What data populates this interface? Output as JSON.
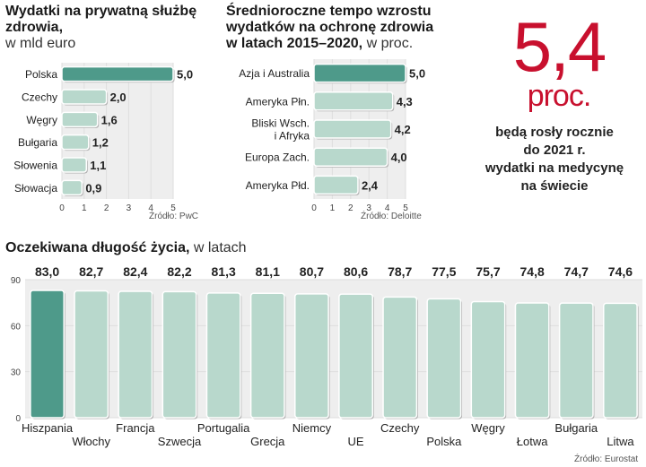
{
  "chart_data": [
    {
      "type": "bar",
      "orientation": "horizontal",
      "title": "Wydatki na prywatną służbę zdrowia,",
      "unit": "w mld euro",
      "categories": [
        "Polska",
        "Czechy",
        "Węgry",
        "Bułgaria",
        "Słowenia",
        "Słowacja"
      ],
      "values": [
        5.0,
        2.0,
        1.6,
        1.2,
        1.1,
        0.9
      ],
      "value_labels": [
        "5,0",
        "2,0",
        "1,6",
        "1,2",
        "1,1",
        "0,9"
      ],
      "xlim": [
        0,
        5
      ],
      "ticks": [
        0,
        1,
        2,
        3,
        4,
        5
      ],
      "source": "Źródło: PwC"
    },
    {
      "type": "bar",
      "orientation": "horizontal",
      "title": "Średnioroczne tempo wzrostu wydatków na ochronę zdrowia w latach 2015–2020,",
      "title_lines": [
        "Średnioroczne tempo wzrostu",
        "wydatków na ochronę zdrowia",
        "w latach 2015–2020,"
      ],
      "unit": "w proc.",
      "categories": [
        "Azja i Australia",
        "Ameryka Płn.",
        "Bliski Wsch. i Afryka",
        "Europa Zach.",
        "Ameryka Płd."
      ],
      "category_lines": [
        [
          "Azja i Australia"
        ],
        [
          "Ameryka Płn."
        ],
        [
          "Bliski Wsch.",
          "i Afryka"
        ],
        [
          "Europa Zach."
        ],
        [
          "Ameryka Płd."
        ]
      ],
      "values": [
        5.0,
        4.3,
        4.2,
        4.0,
        2.4
      ],
      "value_labels": [
        "5,0",
        "4,3",
        "4,2",
        "4,0",
        "2,4"
      ],
      "xlim": [
        0,
        5
      ],
      "ticks": [
        0,
        1,
        2,
        3,
        4,
        5
      ],
      "source": "Źródło: Deloitte"
    },
    {
      "type": "bar",
      "orientation": "vertical",
      "title": "Oczekiwana długość życia,",
      "unit": "w latach",
      "categories": [
        "Hiszpania",
        "Włochy",
        "Francja",
        "Szwecja",
        "Portugalia",
        "Grecja",
        "Niemcy",
        "UE",
        "Czechy",
        "Polska",
        "Węgry",
        "Łotwa",
        "Bułgaria",
        "Litwa"
      ],
      "values": [
        83.0,
        82.7,
        82.4,
        82.2,
        81.3,
        81.1,
        80.7,
        80.6,
        78.7,
        77.5,
        75.7,
        74.8,
        74.7,
        74.6
      ],
      "value_labels": [
        "83,0",
        "82,7",
        "82,4",
        "82,2",
        "81,3",
        "81,1",
        "80,7",
        "80,6",
        "78,7",
        "77,5",
        "75,7",
        "74,8",
        "74,7",
        "74,6"
      ],
      "ylim": [
        0,
        90
      ],
      "ticks": [
        0,
        30,
        60,
        90
      ],
      "source": "Źródło: Eurostat"
    }
  ],
  "highlight": {
    "value": "5,4",
    "unit": "proc.",
    "text_lines": [
      "będą rosły rocznie",
      "do 2021 r.",
      "wydatki na medycynę",
      "na świecie"
    ]
  },
  "colors": {
    "bar_highlight": "#4e9a8a",
    "bar": "#b8d8cc",
    "bar_outline": "#ffffff",
    "bar_shadow": "#b3b3b3",
    "panel": "#eeeeee",
    "grid": "#dedede",
    "accent": "#c8102e",
    "text": "#222222"
  }
}
